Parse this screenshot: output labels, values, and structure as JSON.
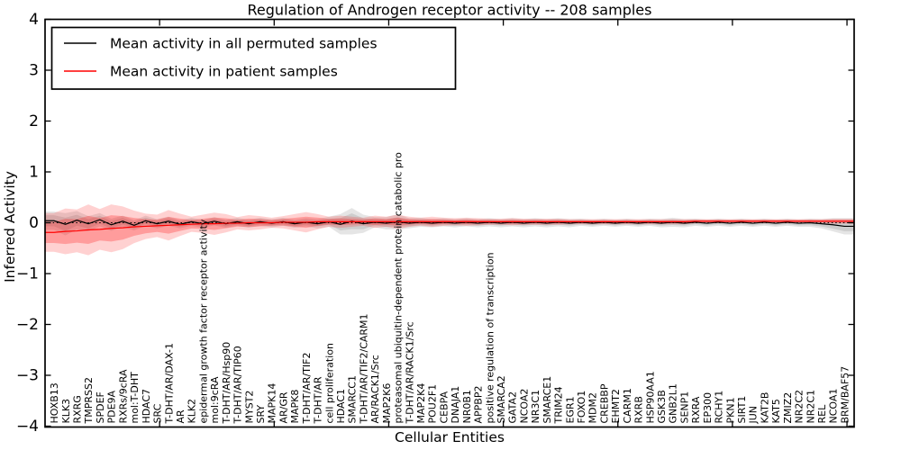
{
  "chart_data": {
    "type": "line",
    "title": "Regulation of Androgen receptor activity -- 208 samples",
    "xlabel": "Cellular Entities",
    "ylabel": "Inferred Activity",
    "ylim": [
      -4,
      4
    ],
    "yticks": [
      -4,
      -3,
      -2,
      -1,
      0,
      1,
      2,
      3,
      4
    ],
    "grid": false,
    "legend_position": "upper left",
    "zero_line": {
      "style": "dotted",
      "color": "#000000"
    },
    "legend": [
      {
        "label": "Mean activity in all permuted samples",
        "color": "#000000"
      },
      {
        "label": "Mean activity in patient samples",
        "color": "#ff0000"
      }
    ],
    "categories": [
      "HOXB13",
      "KLK3",
      "RXRG",
      "TMPRSS2",
      "SPDEF",
      "PDE9A",
      "RXRs/9cRA",
      "mol:T-DHT",
      "HDAC7",
      "SRC",
      "T-DHT/AR/DAX-1",
      "AR",
      "KLK2",
      "epidermal growth factor receptor activity",
      "mol:9cRA",
      "T-DHT/AR/Hsp90",
      "T-DHT/AR/TIP60",
      "MYST2",
      "SRY",
      "MAPK14",
      "AR/GR",
      "MAPK8",
      "T-DHT/AR/TIF2",
      "T-DHT/AR",
      "cell proliferation",
      "HDAC1",
      "SMARCC1",
      "T-DHT/AR/TIF2/CARM1",
      "AR/RACK1/Src",
      "MAP2K6",
      "proteasomal ubiquitin-dependent protein catabolic pro",
      "T-DHT/AR/RACK1/Src",
      "MAP2K4",
      "POU2F1",
      "CEBPA",
      "DNAJA1",
      "NR0B1",
      "APPBP2",
      "positive regulation of transcription",
      "SMARCA2",
      "GATA2",
      "NCOA2",
      "NR3C1",
      "SMARCE1",
      "TRIM24",
      "EGR1",
      "FOXO1",
      "MDM2",
      "CREBBP",
      "EHMT2",
      "CARM1",
      "RXRB",
      "HSP90AA1",
      "GSK3B",
      "GNB2L1",
      "SENP1",
      "RXRA",
      "EP300",
      "RCHY1",
      "PKN1",
      "SIRT1",
      "JUN",
      "KAT2B",
      "KAT5",
      "ZMIZ2",
      "NR2C2",
      "NR2C1",
      "REL",
      "NCOA1",
      "BRM/BAF57"
    ],
    "series": [
      {
        "name": "Mean activity in all permuted samples",
        "color": "#000000",
        "values": [
          0.04,
          -0.03,
          0.05,
          -0.02,
          0.06,
          -0.04,
          0.03,
          -0.05,
          0.04,
          -0.02,
          0.03,
          -0.03,
          0.02,
          -0.02,
          0.03,
          -0.02,
          0.02,
          -0.02,
          0.02,
          -0.01,
          0.02,
          -0.02,
          0.01,
          -0.02,
          0.02,
          -0.03,
          0.03,
          -0.02,
          0.01,
          -0.01,
          0.02,
          -0.01,
          0.01,
          -0.01,
          0.01,
          -0.01,
          0.01,
          -0.01,
          0.01,
          -0.01,
          0.01,
          -0.01,
          0.01,
          -0.01,
          0.01,
          -0.01,
          0.01,
          -0.01,
          0.01,
          -0.01,
          0.01,
          -0.01,
          0.01,
          -0.01,
          0.01,
          -0.01,
          0.01,
          -0.01,
          0.01,
          -0.01,
          0.01,
          -0.01,
          0.01,
          -0.01,
          0.01,
          -0.01,
          0.0,
          -0.02,
          -0.04,
          -0.07
        ],
        "std": [
          0.18,
          0.22,
          0.18,
          0.15,
          0.13,
          0.12,
          0.11,
          0.1,
          0.1,
          0.09,
          0.09,
          0.08,
          0.08,
          0.08,
          0.08,
          0.08,
          0.08,
          0.08,
          0.08,
          0.08,
          0.08,
          0.08,
          0.08,
          0.09,
          0.1,
          0.2,
          0.26,
          0.18,
          0.1,
          0.12,
          0.15,
          0.1,
          0.09,
          0.08,
          0.08,
          0.08,
          0.08,
          0.08,
          0.08,
          0.08,
          0.08,
          0.08,
          0.08,
          0.08,
          0.08,
          0.08,
          0.07,
          0.07,
          0.07,
          0.07,
          0.07,
          0.07,
          0.07,
          0.08,
          0.09,
          0.08,
          0.07,
          0.07,
          0.07,
          0.07,
          0.07,
          0.07,
          0.07,
          0.07,
          0.07,
          0.07,
          0.08,
          0.09,
          0.13,
          0.16
        ]
      },
      {
        "name": "Mean activity in patient samples",
        "color": "#ff0000",
        "values": [
          -0.19,
          -0.17,
          -0.16,
          -0.14,
          -0.13,
          -0.11,
          -0.1,
          -0.08,
          -0.07,
          -0.06,
          -0.05,
          -0.04,
          -0.03,
          -0.02,
          -0.02,
          -0.01,
          -0.01,
          0.0,
          0.0,
          0.0,
          0.01,
          0.01,
          0.01,
          0.02,
          0.02,
          0.02,
          0.02,
          0.02,
          0.02,
          0.02,
          0.02,
          0.02,
          0.02,
          0.02,
          0.02,
          0.02,
          0.02,
          0.02,
          0.02,
          0.02,
          0.02,
          0.02,
          0.02,
          0.02,
          0.02,
          0.02,
          0.02,
          0.02,
          0.02,
          0.02,
          0.02,
          0.02,
          0.02,
          0.02,
          0.02,
          0.02,
          0.03,
          0.03,
          0.03,
          0.03,
          0.03,
          0.03,
          0.03,
          0.03,
          0.03,
          0.03,
          0.03,
          0.03,
          0.03,
          0.03
        ],
        "std": [
          0.38,
          0.45,
          0.42,
          0.5,
          0.4,
          0.47,
          0.42,
          0.32,
          0.25,
          0.22,
          0.3,
          0.22,
          0.15,
          0.18,
          0.22,
          0.18,
          0.12,
          0.15,
          0.13,
          0.1,
          0.12,
          0.16,
          0.2,
          0.15,
          0.1,
          0.12,
          0.1,
          0.08,
          0.12,
          0.1,
          0.14,
          0.1,
          0.08,
          0.1,
          0.08,
          0.07,
          0.08,
          0.07,
          0.06,
          0.06,
          0.07,
          0.06,
          0.06,
          0.06,
          0.06,
          0.05,
          0.05,
          0.05,
          0.05,
          0.05,
          0.05,
          0.05,
          0.05,
          0.05,
          0.05,
          0.05,
          0.04,
          0.04,
          0.04,
          0.04,
          0.04,
          0.04,
          0.04,
          0.04,
          0.04,
          0.04,
          0.04,
          0.04,
          0.05,
          0.05
        ]
      }
    ]
  }
}
